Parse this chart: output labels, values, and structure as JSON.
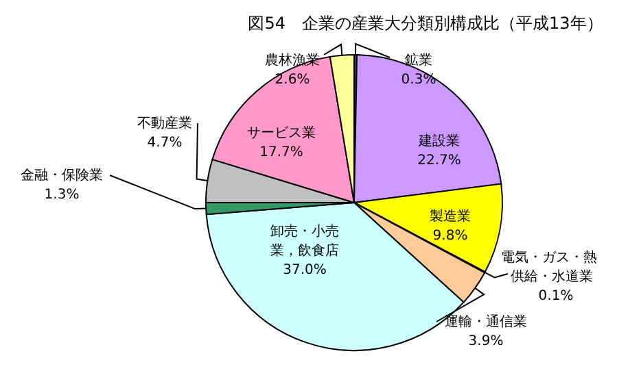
{
  "chart_data": {
    "type": "pie",
    "title": "図54　企業の産業大分類別構成比（平成13年）",
    "categories": [
      "鉱業",
      "建設業",
      "製造業",
      "電気・ガス・熱供給・水道業",
      "運輸・通信業",
      "卸売・小売業，飲食店",
      "金融・保険業",
      "不動産業",
      "サービス業",
      "農林漁業"
    ],
    "values": [
      0.3,
      22.7,
      9.8,
      0.1,
      3.9,
      37.0,
      1.3,
      4.7,
      17.7,
      2.6
    ],
    "value_labels": [
      "0.3%",
      "22.7%",
      "9.8%",
      "0.1%",
      "3.9%",
      "37.0%",
      "1.3%",
      "4.7%",
      "17.7%",
      "2.6%"
    ],
    "colors": [
      "#404040",
      "#cc99ff",
      "#ffff00",
      "#333333",
      "#ffcc99",
      "#ccffff",
      "#339966",
      "#c0c0c0",
      "#ff99cc",
      "#ffff99"
    ]
  }
}
